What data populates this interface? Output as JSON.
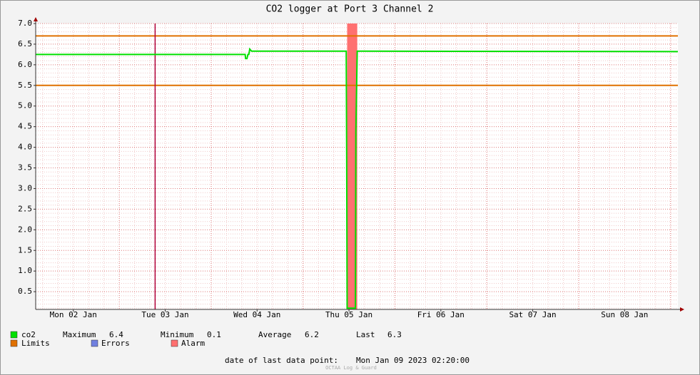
{
  "chart_data": {
    "type": "line",
    "title": "CO2 logger at Port 3 Channel 2",
    "series": [
      {
        "name": "co2",
        "color": "#00e000",
        "x": [
          0.09,
          2.37,
          2.375,
          2.39,
          2.4,
          2.41,
          2.42,
          2.44,
          2.46,
          3.47,
          3.475,
          3.48,
          3.57,
          3.575,
          3.59,
          7.08
        ],
        "values": [
          6.25,
          6.25,
          6.15,
          6.15,
          6.25,
          6.25,
          6.38,
          6.33,
          6.33,
          6.33,
          3.8,
          0.1,
          0.1,
          4.4,
          6.33,
          6.32
        ]
      }
    ],
    "legend_stats": [
      {
        "label": "Maximum",
        "value": 6.4
      },
      {
        "label": "Minimum",
        "value": 0.1
      },
      {
        "label": "Average",
        "value": 6.2
      },
      {
        "label": "Last",
        "value": 6.3
      }
    ],
    "limits": {
      "name": "Limits",
      "color": "#e07000",
      "values": [
        6.7,
        5.5
      ]
    },
    "errors": {
      "name": "Errors",
      "color": "#7080e0"
    },
    "alarm": {
      "name": "Alarm",
      "color": "#ff7070",
      "x": [
        3.48,
        3.59
      ]
    },
    "vrule": {
      "x": 1.39,
      "color": "#b0003a"
    },
    "xlim": [
      0.09,
      7.08
    ],
    "ylim": [
      0.07,
      7.0
    ],
    "yticks": [
      {
        "value": 0.5,
        "label": "0.5"
      },
      {
        "value": 1,
        "label": "1.0"
      },
      1.5,
      {
        "value": 2,
        "label": "2.0"
      },
      2.5,
      {
        "value": 3,
        "label": "3.0"
      },
      3.5,
      {
        "value": 4,
        "label": "4.0"
      },
      4.5,
      {
        "value": 5,
        "label": "5.0"
      },
      5.5,
      {
        "value": 6,
        "label": "6.0"
      },
      6.5,
      {
        "value": 7,
        "label": "7.0"
      }
    ],
    "xticks": [
      {
        "value": 0.5,
        "label": "Mon 02 Jan"
      },
      {
        "value": 1.5,
        "label": "Tue 03 Jan"
      },
      {
        "value": 2.5,
        "label": "Wed 04 Jan"
      },
      {
        "value": 3.5,
        "label": "Thu 05 Jan"
      },
      {
        "value": 4.5,
        "label": "Fri 06 Jan"
      },
      {
        "value": 5.5,
        "label": "Sat 07 Jan"
      },
      {
        "value": 6.5,
        "label": "Sun 08 Jan"
      }
    ],
    "xgrid": [
      1,
      2,
      3,
      4,
      5,
      6,
      7
    ],
    "minor_ystep": 0.1,
    "minor_xstep": 0.1667,
    "grid": true,
    "footer": {
      "label": "date of last data point:",
      "value": "Mon Jan 09 2023 02:20:00"
    },
    "watermark": "OCTAA Log & Guard"
  }
}
